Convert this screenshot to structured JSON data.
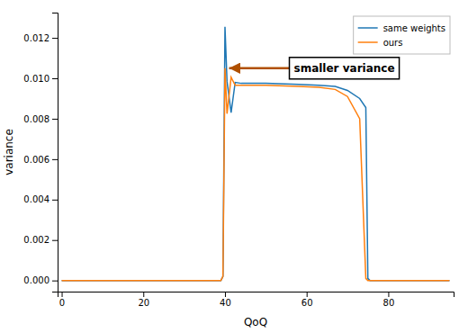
{
  "chart_data": {
    "type": "line",
    "xlabel": "QoQ",
    "ylabel": "variance",
    "xlim": [
      -1,
      96
    ],
    "ylim": [
      -0.00055,
      0.01325
    ],
    "xticks": [
      0,
      20,
      40,
      60,
      80
    ],
    "yticks": [
      {
        "value": 0,
        "label": "0.000"
      },
      0.002,
      0.004,
      0.006,
      0.008,
      {
        "value": 0.01,
        "label": "0.010"
      },
      0.012
    ],
    "grid": false,
    "legend": "upper-right",
    "series": [
      {
        "name": "same weights",
        "color": "#1f77b4",
        "x": [
          0,
          36,
          37,
          39.0,
          39.5,
          40.0,
          40.5,
          41.5,
          42.5,
          44,
          50,
          58,
          63,
          67,
          70,
          73,
          74.5,
          75.0,
          75.5,
          90,
          95
        ],
        "values": [
          0.0,
          0.0,
          0.0,
          0.0,
          0.0002,
          0.01255,
          0.00985,
          0.0083,
          0.0098,
          0.00975,
          0.00975,
          0.0097,
          0.00965,
          0.0096,
          0.0094,
          0.009,
          0.00855,
          0.0001,
          0.0,
          0.0,
          0.0
        ]
      },
      {
        "name": "ours",
        "color": "#ff7f0e",
        "x": [
          0,
          36,
          37,
          39.0,
          39.5,
          40.0,
          40.5,
          41.5,
          42.5,
          44,
          50,
          58,
          63,
          67,
          70,
          73,
          74.5,
          75.0,
          75.5,
          90,
          95
        ],
        "values": [
          0.0,
          0.0,
          0.0,
          0.0,
          0.0002,
          0.0105,
          0.00825,
          0.01005,
          0.00965,
          0.00965,
          0.00965,
          0.0096,
          0.00955,
          0.00945,
          0.0091,
          0.008,
          0.0001,
          0.0,
          0.0,
          0.0,
          0.0
        ]
      }
    ],
    "annotations": [
      {
        "text": "smaller variance",
        "x": 41.0,
        "y": 0.0105,
        "color": "#b05000"
      }
    ]
  }
}
